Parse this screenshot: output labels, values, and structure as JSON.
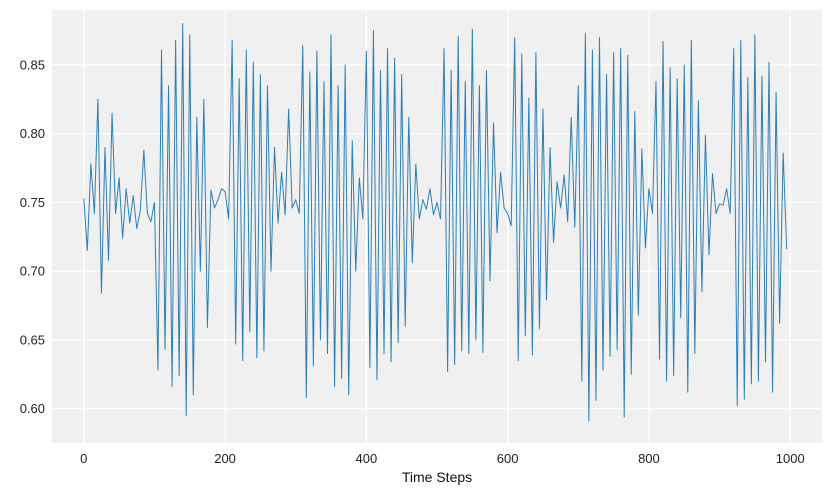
{
  "chart_data": {
    "type": "line",
    "title": "",
    "xlabel": "Time Steps",
    "ylabel": "",
    "xlim": [
      -45,
      1045
    ],
    "ylim": [
      0.575,
      0.89
    ],
    "xticks": [
      0,
      200,
      400,
      600,
      800,
      1000
    ],
    "yticks": [
      0.6,
      0.65,
      0.7,
      0.75,
      0.8,
      0.85
    ],
    "xtick_labels": [
      "0",
      "200",
      "400",
      "600",
      "800",
      "1000"
    ],
    "ytick_labels": [
      "0.60",
      "0.65",
      "0.70",
      "0.75",
      "0.80",
      "0.85"
    ],
    "grid": true,
    "legend": "none",
    "colors": {
      "background": "#f0f0f0",
      "grid": "#ffffff",
      "line": "#2f7fb5"
    },
    "series": [
      {
        "x_start": 0,
        "x_step": 5,
        "values": [
          0.753,
          0.715,
          0.778,
          0.742,
          0.825,
          0.684,
          0.79,
          0.708,
          0.815,
          0.742,
          0.768,
          0.724,
          0.76,
          0.735,
          0.755,
          0.731,
          0.744,
          0.788,
          0.742,
          0.736,
          0.75,
          0.628,
          0.861,
          0.643,
          0.835,
          0.616,
          0.868,
          0.624,
          0.88,
          0.595,
          0.872,
          0.61,
          0.812,
          0.7,
          0.825,
          0.659,
          0.759,
          0.746,
          0.752,
          0.76,
          0.758,
          0.738,
          0.868,
          0.647,
          0.84,
          0.635,
          0.861,
          0.656,
          0.852,
          0.637,
          0.843,
          0.642,
          0.835,
          0.7,
          0.79,
          0.735,
          0.772,
          0.741,
          0.818,
          0.746,
          0.752,
          0.742,
          0.864,
          0.608,
          0.845,
          0.631,
          0.86,
          0.65,
          0.838,
          0.64,
          0.872,
          0.616,
          0.835,
          0.622,
          0.85,
          0.61,
          0.795,
          0.7,
          0.768,
          0.738,
          0.86,
          0.63,
          0.875,
          0.621,
          0.846,
          0.64,
          0.862,
          0.634,
          0.855,
          0.648,
          0.843,
          0.66,
          0.812,
          0.706,
          0.778,
          0.738,
          0.752,
          0.745,
          0.76,
          0.741,
          0.75,
          0.738,
          0.862,
          0.627,
          0.846,
          0.632,
          0.871,
          0.642,
          0.838,
          0.64,
          0.876,
          0.65,
          0.835,
          0.641,
          0.846,
          0.693,
          0.808,
          0.728,
          0.772,
          0.746,
          0.742,
          0.733,
          0.87,
          0.635,
          0.858,
          0.653,
          0.826,
          0.639,
          0.859,
          0.658,
          0.818,
          0.679,
          0.79,
          0.721,
          0.765,
          0.746,
          0.77,
          0.736,
          0.812,
          0.732,
          0.835,
          0.62,
          0.873,
          0.591,
          0.861,
          0.606,
          0.87,
          0.628,
          0.843,
          0.638,
          0.859,
          0.643,
          0.862,
          0.594,
          0.857,
          0.625,
          0.816,
          0.668,
          0.789,
          0.717,
          0.76,
          0.742,
          0.838,
          0.636,
          0.867,
          0.62,
          0.848,
          0.624,
          0.84,
          0.666,
          0.85,
          0.612,
          0.868,
          0.64,
          0.824,
          0.685,
          0.799,
          0.712,
          0.771,
          0.742,
          0.749,
          0.748,
          0.76,
          0.742,
          0.862,
          0.602,
          0.868,
          0.607,
          0.841,
          0.618,
          0.872,
          0.62,
          0.842,
          0.634,
          0.852,
          0.612,
          0.83,
          0.662,
          0.786,
          0.716
        ]
      }
    ]
  }
}
